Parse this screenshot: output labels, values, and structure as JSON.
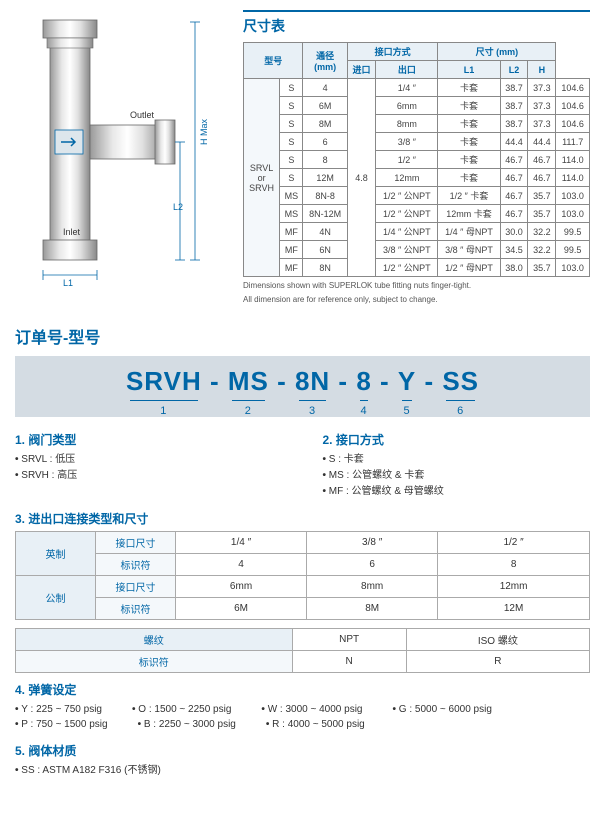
{
  "dim_title": "尺寸表",
  "dim_headers": {
    "model": "型号",
    "bore": "通径\n(mm)",
    "conn": "接口方式",
    "inlet": "进口",
    "outlet": "出口",
    "size": "尺寸 (mm)",
    "L1": "L1",
    "L2": "L2",
    "H": "H"
  },
  "dim_model_group": "SRVL\nor\nSRVH",
  "dim_bore_val": "4.8",
  "dim_rows": [
    [
      "S",
      "4",
      "1/4 ″",
      "卡套",
      "38.7",
      "37.3",
      "104.6"
    ],
    [
      "S",
      "6M",
      "6mm",
      "卡套",
      "38.7",
      "37.3",
      "104.6"
    ],
    [
      "S",
      "8M",
      "8mm",
      "卡套",
      "38.7",
      "37.3",
      "104.6"
    ],
    [
      "S",
      "6",
      "3/8 ″",
      "卡套",
      "44.4",
      "44.4",
      "111.7"
    ],
    [
      "S",
      "8",
      "1/2 ″",
      "卡套",
      "46.7",
      "46.7",
      "114.0"
    ],
    [
      "S",
      "12M",
      "12mm",
      "卡套",
      "46.7",
      "46.7",
      "114.0"
    ],
    [
      "MS",
      "8N-8",
      "1/2 ″ 公NPT",
      "1/2 ″ 卡套",
      "46.7",
      "35.7",
      "103.0"
    ],
    [
      "MS",
      "8N-12M",
      "1/2 ″ 公NPT",
      "12mm 卡套",
      "46.7",
      "35.7",
      "103.0"
    ],
    [
      "MF",
      "4N",
      "1/4 ″ 公NPT",
      "1/4 ″ 母NPT",
      "30.0",
      "32.2",
      "99.5"
    ],
    [
      "MF",
      "6N",
      "3/8 ″ 公NPT",
      "3/8 ″ 母NPT",
      "34.5",
      "32.2",
      "99.5"
    ],
    [
      "MF",
      "8N",
      "1/2 ″ 公NPT",
      "1/2 ″ 母NPT",
      "38.0",
      "35.7",
      "103.0"
    ]
  ],
  "dim_note1": "Dimensions shown with SUPERLOK tube fitting nuts finger-tight.",
  "dim_note2": "All dimension are for reference only, subject to change.",
  "diagram_labels": {
    "outlet": "Outlet",
    "inlet": "Inlet",
    "hmax": "H Max",
    "l1": "L1",
    "l2": "L2"
  },
  "order_heading": "订单号-型号",
  "order_parts": [
    "SRVH",
    "MS",
    "8N",
    "8",
    "Y",
    "SS"
  ],
  "sec1": {
    "title": "1.  阀门类型",
    "items": [
      "SRVL : 低压",
      "SRVH : 高压"
    ]
  },
  "sec2": {
    "title": "2.  接口方式",
    "items": [
      "S : 卡套",
      "MS : 公管螺纹 & 卡套",
      "MF : 公管螺纹 &  母管螺纹"
    ]
  },
  "sec3": {
    "title": "3.  进出口连接类型和尺寸",
    "imperial": "英制",
    "metric": "公制",
    "thread": "螺纹",
    "port_size": "接口尺寸",
    "ident": "标识符",
    "imp_sizes": [
      "1/4 ″",
      "3/8 ″",
      "1/2 ″"
    ],
    "imp_codes": [
      "4",
      "6",
      "8"
    ],
    "met_sizes": [
      "6mm",
      "8mm",
      "12mm"
    ],
    "met_codes": [
      "6M",
      "8M",
      "12M"
    ],
    "thread_types": [
      "NPT",
      "ISO 螺纹"
    ],
    "thread_codes": [
      "N",
      "R"
    ]
  },
  "sec4": {
    "title": "4.  弹簧设定",
    "items": [
      "Y : 225 ~ 750 psig",
      "O : 1500 ~ 2250 psig",
      "W : 3000 ~ 4000 psig",
      "G : 5000 ~ 6000 psig",
      "P : 750 ~ 1500 psig",
      "B : 2250 ~ 3000 psig",
      "R : 4000 ~ 5000 psig"
    ]
  },
  "sec5": {
    "title": "5.  阀体材质",
    "items": [
      "SS : ASTM A182 F316 (不锈钢)"
    ]
  }
}
